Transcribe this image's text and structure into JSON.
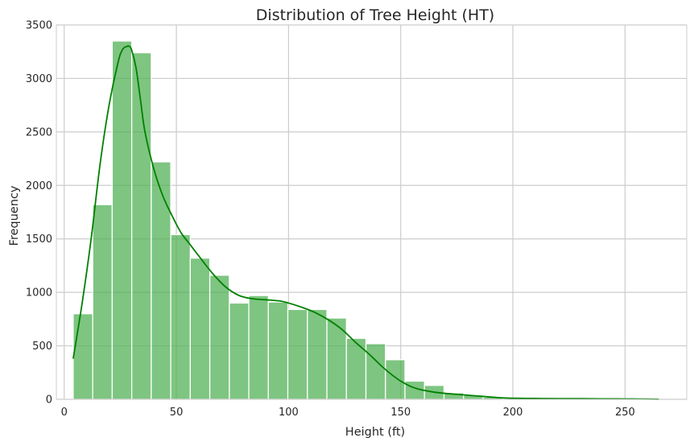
{
  "chart_data": {
    "type": "bar",
    "title": "Distribution of Tree Height (HT)",
    "xlabel": "Height (ft)",
    "ylabel": "Frequency",
    "xlim": [
      -3.5,
      277.5
    ],
    "ylim": [
      0,
      3500
    ],
    "xticks": [
      0,
      50,
      100,
      150,
      200,
      250
    ],
    "yticks": [
      0,
      500,
      1000,
      1500,
      2000,
      2500,
      3000,
      3500
    ],
    "grid": true,
    "bar_color": "#4caf50",
    "kde_color": "#008000",
    "bin_start": 4,
    "bin_width": 8.7,
    "bins": [
      {
        "x_start": 4.0,
        "x_end": 12.7,
        "count": 800
      },
      {
        "x_start": 12.7,
        "x_end": 21.4,
        "count": 1820
      },
      {
        "x_start": 21.4,
        "x_end": 30.1,
        "count": 3350
      },
      {
        "x_start": 30.1,
        "x_end": 38.8,
        "count": 3240
      },
      {
        "x_start": 38.8,
        "x_end": 47.5,
        "count": 2220
      },
      {
        "x_start": 47.5,
        "x_end": 56.2,
        "count": 1540
      },
      {
        "x_start": 56.2,
        "x_end": 64.9,
        "count": 1320
      },
      {
        "x_start": 64.9,
        "x_end": 73.6,
        "count": 1160
      },
      {
        "x_start": 73.6,
        "x_end": 82.3,
        "count": 900
      },
      {
        "x_start": 82.3,
        "x_end": 91.0,
        "count": 970
      },
      {
        "x_start": 91.0,
        "x_end": 99.7,
        "count": 910
      },
      {
        "x_start": 99.7,
        "x_end": 108.4,
        "count": 840
      },
      {
        "x_start": 108.4,
        "x_end": 117.1,
        "count": 840
      },
      {
        "x_start": 117.1,
        "x_end": 125.8,
        "count": 760
      },
      {
        "x_start": 125.8,
        "x_end": 134.5,
        "count": 570
      },
      {
        "x_start": 134.5,
        "x_end": 143.2,
        "count": 520
      },
      {
        "x_start": 143.2,
        "x_end": 151.9,
        "count": 370
      },
      {
        "x_start": 151.9,
        "x_end": 160.6,
        "count": 170
      },
      {
        "x_start": 160.6,
        "x_end": 169.3,
        "count": 130
      },
      {
        "x_start": 169.3,
        "x_end": 178.0,
        "count": 60
      },
      {
        "x_start": 178.0,
        "x_end": 186.7,
        "count": 40
      },
      {
        "x_start": 186.7,
        "x_end": 195.4,
        "count": 20
      },
      {
        "x_start": 195.4,
        "x_end": 204.1,
        "count": 10
      },
      {
        "x_start": 204.1,
        "x_end": 212.8,
        "count": 8
      },
      {
        "x_start": 212.8,
        "x_end": 221.5,
        "count": 5
      },
      {
        "x_start": 221.5,
        "x_end": 230.2,
        "count": 4
      },
      {
        "x_start": 230.2,
        "x_end": 238.9,
        "count": 3
      },
      {
        "x_start": 238.9,
        "x_end": 247.6,
        "count": 4
      },
      {
        "x_start": 247.6,
        "x_end": 256.3,
        "count": 3
      },
      {
        "x_start": 256.3,
        "x_end": 265.0,
        "count": 2
      }
    ],
    "kde": {
      "x": [
        4,
        8,
        12,
        16,
        20,
        24,
        26,
        28,
        29,
        30,
        32,
        34,
        36,
        40,
        44,
        48,
        52,
        56,
        60,
        66,
        72,
        78,
        84,
        90,
        96,
        100,
        106,
        112,
        118,
        124,
        130,
        136,
        142,
        146,
        150,
        154,
        158,
        164,
        170,
        176,
        182,
        188,
        194,
        200,
        210,
        220,
        230,
        240,
        250,
        256,
        262,
        265
      ],
      "y": [
        380,
        900,
        1500,
        2200,
        2750,
        3150,
        3270,
        3300,
        3300,
        3270,
        3100,
        2800,
        2500,
        2150,
        1900,
        1720,
        1560,
        1450,
        1340,
        1180,
        1050,
        970,
        940,
        930,
        920,
        900,
        860,
        810,
        740,
        650,
        530,
        420,
        300,
        230,
        170,
        125,
        95,
        70,
        55,
        45,
        35,
        25,
        15,
        10,
        8,
        6,
        6,
        5,
        4,
        3,
        2,
        1
      ]
    }
  }
}
